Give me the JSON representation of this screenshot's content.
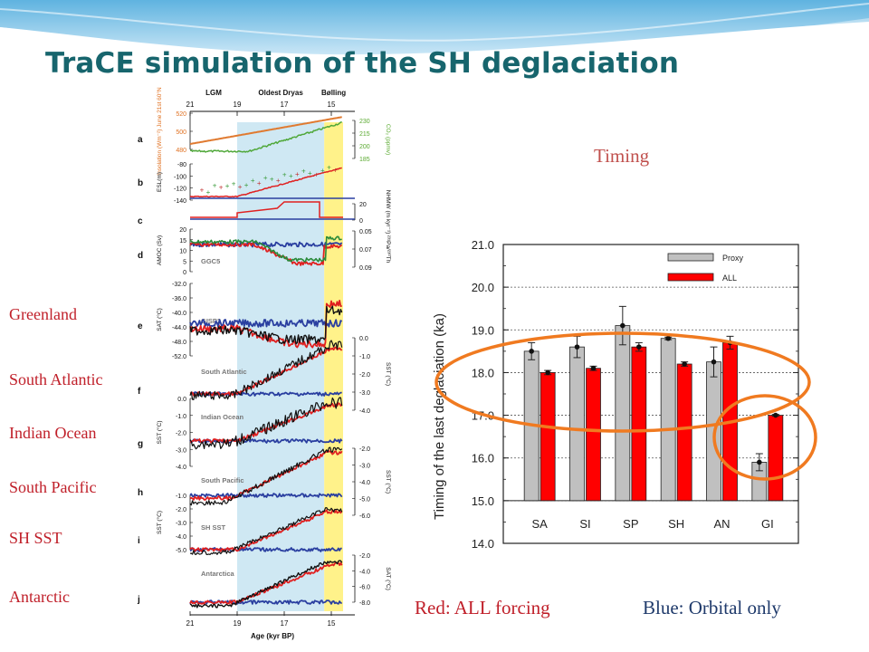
{
  "slide": {
    "title": "TraCE simulation of the SH deglaciation",
    "timing_label": "Timing",
    "caption_red": "Red: ALL forcing",
    "caption_blue": "Blue: Orbital only",
    "side_labels": [
      "Greenland",
      "South Atlantic",
      "Indian Ocean",
      "South Pacific",
      "SH SST",
      "Antarctic"
    ]
  },
  "colors": {
    "title": "#17656d",
    "red_forcing": "#e02020",
    "blue_orbital": "#2a3fa0",
    "proxy_bar": "#c0c0c0",
    "all_bar": "#ff0000",
    "ellipse": "#f07a20",
    "lgm_shade": "#cfe8f3",
    "bolling_shade": "#fff28a"
  },
  "chart_data": [
    {
      "type": "bar",
      "categories": [
        "SA",
        "SI",
        "SP",
        "SH",
        "AN",
        "GI"
      ],
      "ylabel": "Timing of the last deglaciation (ka)",
      "ylim": [
        14.0,
        21.0
      ],
      "y_ticks": [
        "21.0",
        "20.0",
        "19.0",
        "18.0",
        "17.0",
        "16.0",
        "15.0",
        "14.0"
      ],
      "grid": true,
      "legend_position": "top-right",
      "series": [
        {
          "name": "Proxy",
          "values": [
            18.5,
            18.6,
            19.1,
            18.8,
            18.25,
            15.9
          ],
          "errors": [
            0.2,
            0.25,
            0.45,
            0.03,
            0.35,
            0.2
          ]
        },
        {
          "name": "ALL",
          "values": [
            18.0,
            18.1,
            18.6,
            18.2,
            18.7,
            17.0
          ],
          "errors": [
            0.05,
            0.05,
            0.1,
            0.05,
            0.15,
            0.02
          ]
        }
      ]
    },
    {
      "type": "line",
      "xlabel": "Age (kyr BP)",
      "x_ticks": [
        "21",
        "19",
        "17",
        "15"
      ],
      "xlim": [
        21,
        14
      ],
      "periods": [
        "LGM",
        "Oldest Dryas",
        "Bølling"
      ],
      "panel_letters": [
        "a",
        "b",
        "c",
        "d",
        "e",
        "f",
        "g",
        "h",
        "i",
        "j"
      ],
      "panel_names": [
        "GGC5",
        "GISP2",
        "South Atlantic",
        "Indian Ocean",
        "South Pacific",
        "SH SST",
        "Antarctica"
      ],
      "left_axes": [
        {
          "label": "Insolation (Wm⁻²) June 21st 60°N",
          "ticks": [
            "520",
            "500",
            "480"
          ]
        },
        {
          "label": "ESL(m)",
          "ticks": [
            "-80",
            "-100",
            "-120",
            "-140"
          ]
        },
        {
          "label": "AMOC (Sv)",
          "ticks": [
            "20",
            "15",
            "10",
            "5",
            "0"
          ]
        },
        {
          "label": "SAT (°C)",
          "ticks": [
            "-32.0",
            "-36.0",
            "-40.0",
            "-44.0",
            "-48.0",
            "-52.0"
          ]
        },
        {
          "label": "SST (°C)",
          "ticks": [
            "0.0",
            "-1.0",
            "-2.0",
            "-3.0",
            "-4.0"
          ]
        },
        {
          "label": "SST (°C)",
          "ticks": [
            "-1.0",
            "-2.0",
            "-3.0",
            "-4.0",
            "-5.0"
          ]
        }
      ],
      "right_axes": [
        {
          "label": "CO₂ (ppmv)",
          "ticks": [
            "230",
            "215",
            "200",
            "185"
          ]
        },
        {
          "label": "NHMW (m kyr⁻¹)",
          "ticks": [
            "20",
            "0"
          ]
        },
        {
          "label": "²³¹Pa/²³⁰Th",
          "ticks": [
            "0.05",
            "0.07",
            "0.09"
          ]
        },
        {
          "label": "SST (°C)",
          "ticks": [
            "0.0",
            "-1.0",
            "-2.0",
            "-3.0",
            "-4.0"
          ]
        },
        {
          "label": "SST (°C)",
          "ticks": [
            "-2.0",
            "-3.0",
            "-4.0",
            "-5.0",
            "-6.0"
          ]
        },
        {
          "label": "SAT (°C)",
          "ticks": [
            "-2.0",
            "-4.0",
            "-6.0",
            "-8.0"
          ]
        }
      ]
    }
  ]
}
